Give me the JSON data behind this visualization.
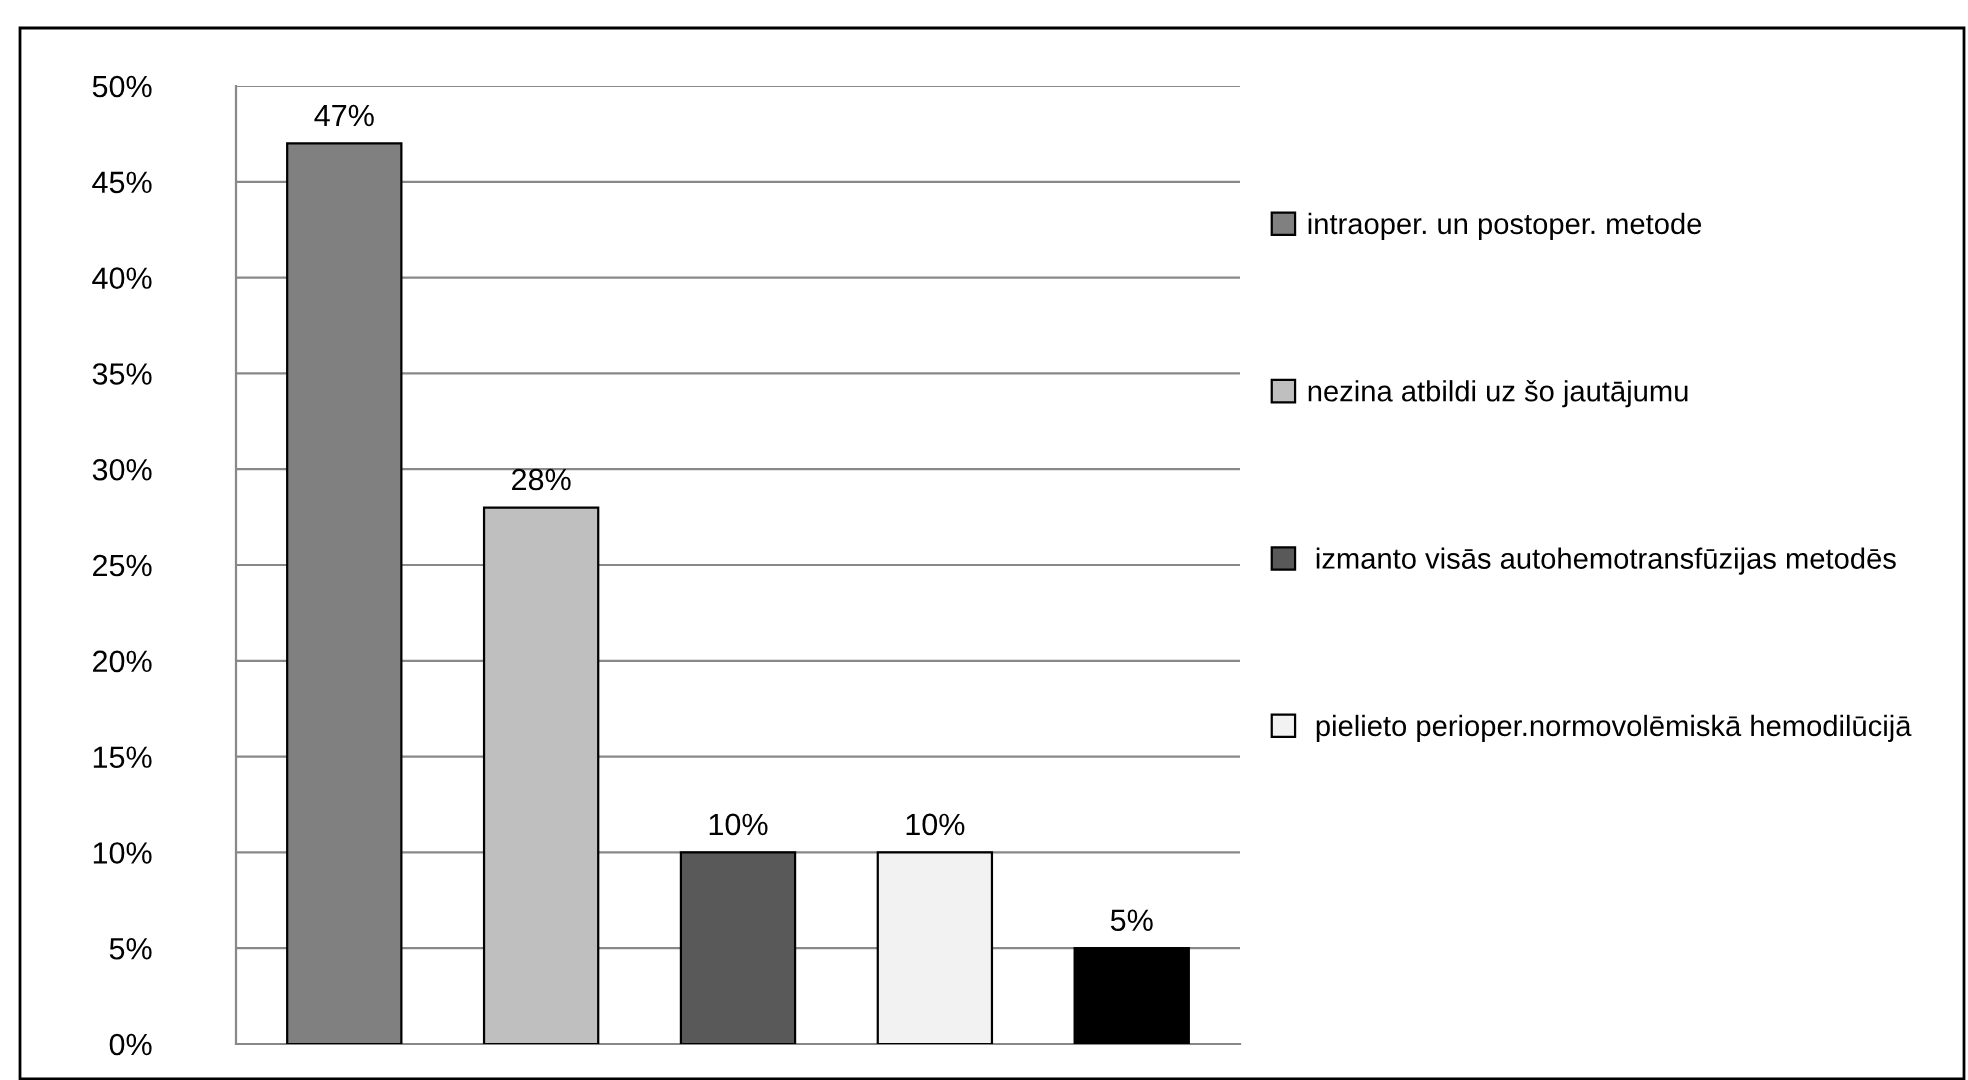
{
  "chart_data": {
    "type": "bar",
    "categories": [
      null,
      null,
      null,
      null,
      null
    ],
    "series": [
      {
        "name": "intraoper. un postoper. metode",
        "color": "#808080",
        "values": [
          47,
          null,
          null,
          null,
          null
        ],
        "value_labels": [
          "47%",
          null,
          null,
          null,
          null
        ]
      },
      {
        "name": "nezina atbildi uz šo jautājumu",
        "color": "#bfbfbf",
        "values": [
          null,
          28,
          null,
          null,
          null
        ],
        "value_labels": [
          null,
          "28%",
          null,
          null,
          null
        ]
      },
      {
        "name": " izmanto visās autohemotransfūzijas metodēs",
        "color": "#595959",
        "values": [
          null,
          null,
          10,
          null,
          null
        ],
        "value_labels": [
          null,
          null,
          "10%",
          null,
          null
        ]
      },
      {
        "name": " pielieto perioper.normovolēmiskā hemodilūcijā",
        "color": "#f2f2f2",
        "values": [
          null,
          null,
          null,
          10,
          null
        ],
        "value_labels": [
          null,
          null,
          null,
          "10%",
          null
        ]
      },
      {
        "color": "#000000",
        "values": [
          null,
          null,
          null,
          null,
          5
        ],
        "value_labels": [
          null,
          null,
          null,
          null,
          "5%"
        ]
      }
    ],
    "ylim": [
      0,
      50
    ],
    "yticks": [
      {
        "value": 0,
        "label": "0%"
      },
      {
        "value": 5,
        "label": "5%"
      },
      {
        "value": 10,
        "label": "10%"
      },
      {
        "value": 15,
        "label": "15%"
      },
      {
        "value": 20,
        "label": "20%"
      },
      {
        "value": 25,
        "label": "25%"
      },
      {
        "value": 30,
        "label": "30%"
      },
      {
        "value": 35,
        "label": "35%"
      },
      {
        "value": 40,
        "label": "40%"
      },
      {
        "value": 45,
        "label": "45%"
      },
      {
        "value": 50,
        "label": "50%"
      }
    ],
    "grid": "y",
    "legend": "right",
    "tick_labels": "y"
  }
}
